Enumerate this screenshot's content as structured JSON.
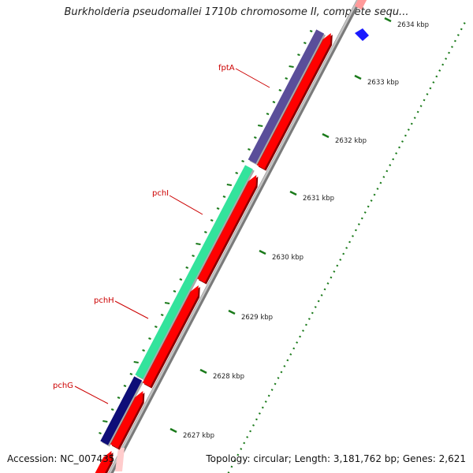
{
  "title": "Burkholderia pseudomallei 1710b chromosome II, complete sequ...",
  "footer": {
    "accession": "Accession: NC_007435",
    "topology": "Topology: circular; Length: 3,181,762 bp; Genes: 2,621"
  },
  "colors": {
    "reverse_strand_gene": "#ff0000",
    "fptA": "#5a4e9a",
    "pchI": "#33e39c",
    "pchG": "#0e0e78",
    "gene_label": "#cc0000",
    "kbp_tick": "#1a7a1a",
    "backbone": "#9a9a9a"
  },
  "genes": [
    {
      "name": "fptA",
      "color_key": "fptA"
    },
    {
      "name": "pchI",
      "color_key": "pchI"
    },
    {
      "name": "pchH",
      "color_key": "pchI"
    },
    {
      "name": "pchG",
      "color_key": "pchG"
    }
  ],
  "kbp_labels": [
    "2634 kbp",
    "2633 kbp",
    "2632 kbp",
    "2631 kbp",
    "2630 kbp",
    "2629 kbp",
    "2628 kbp",
    "2627 kbp"
  ]
}
